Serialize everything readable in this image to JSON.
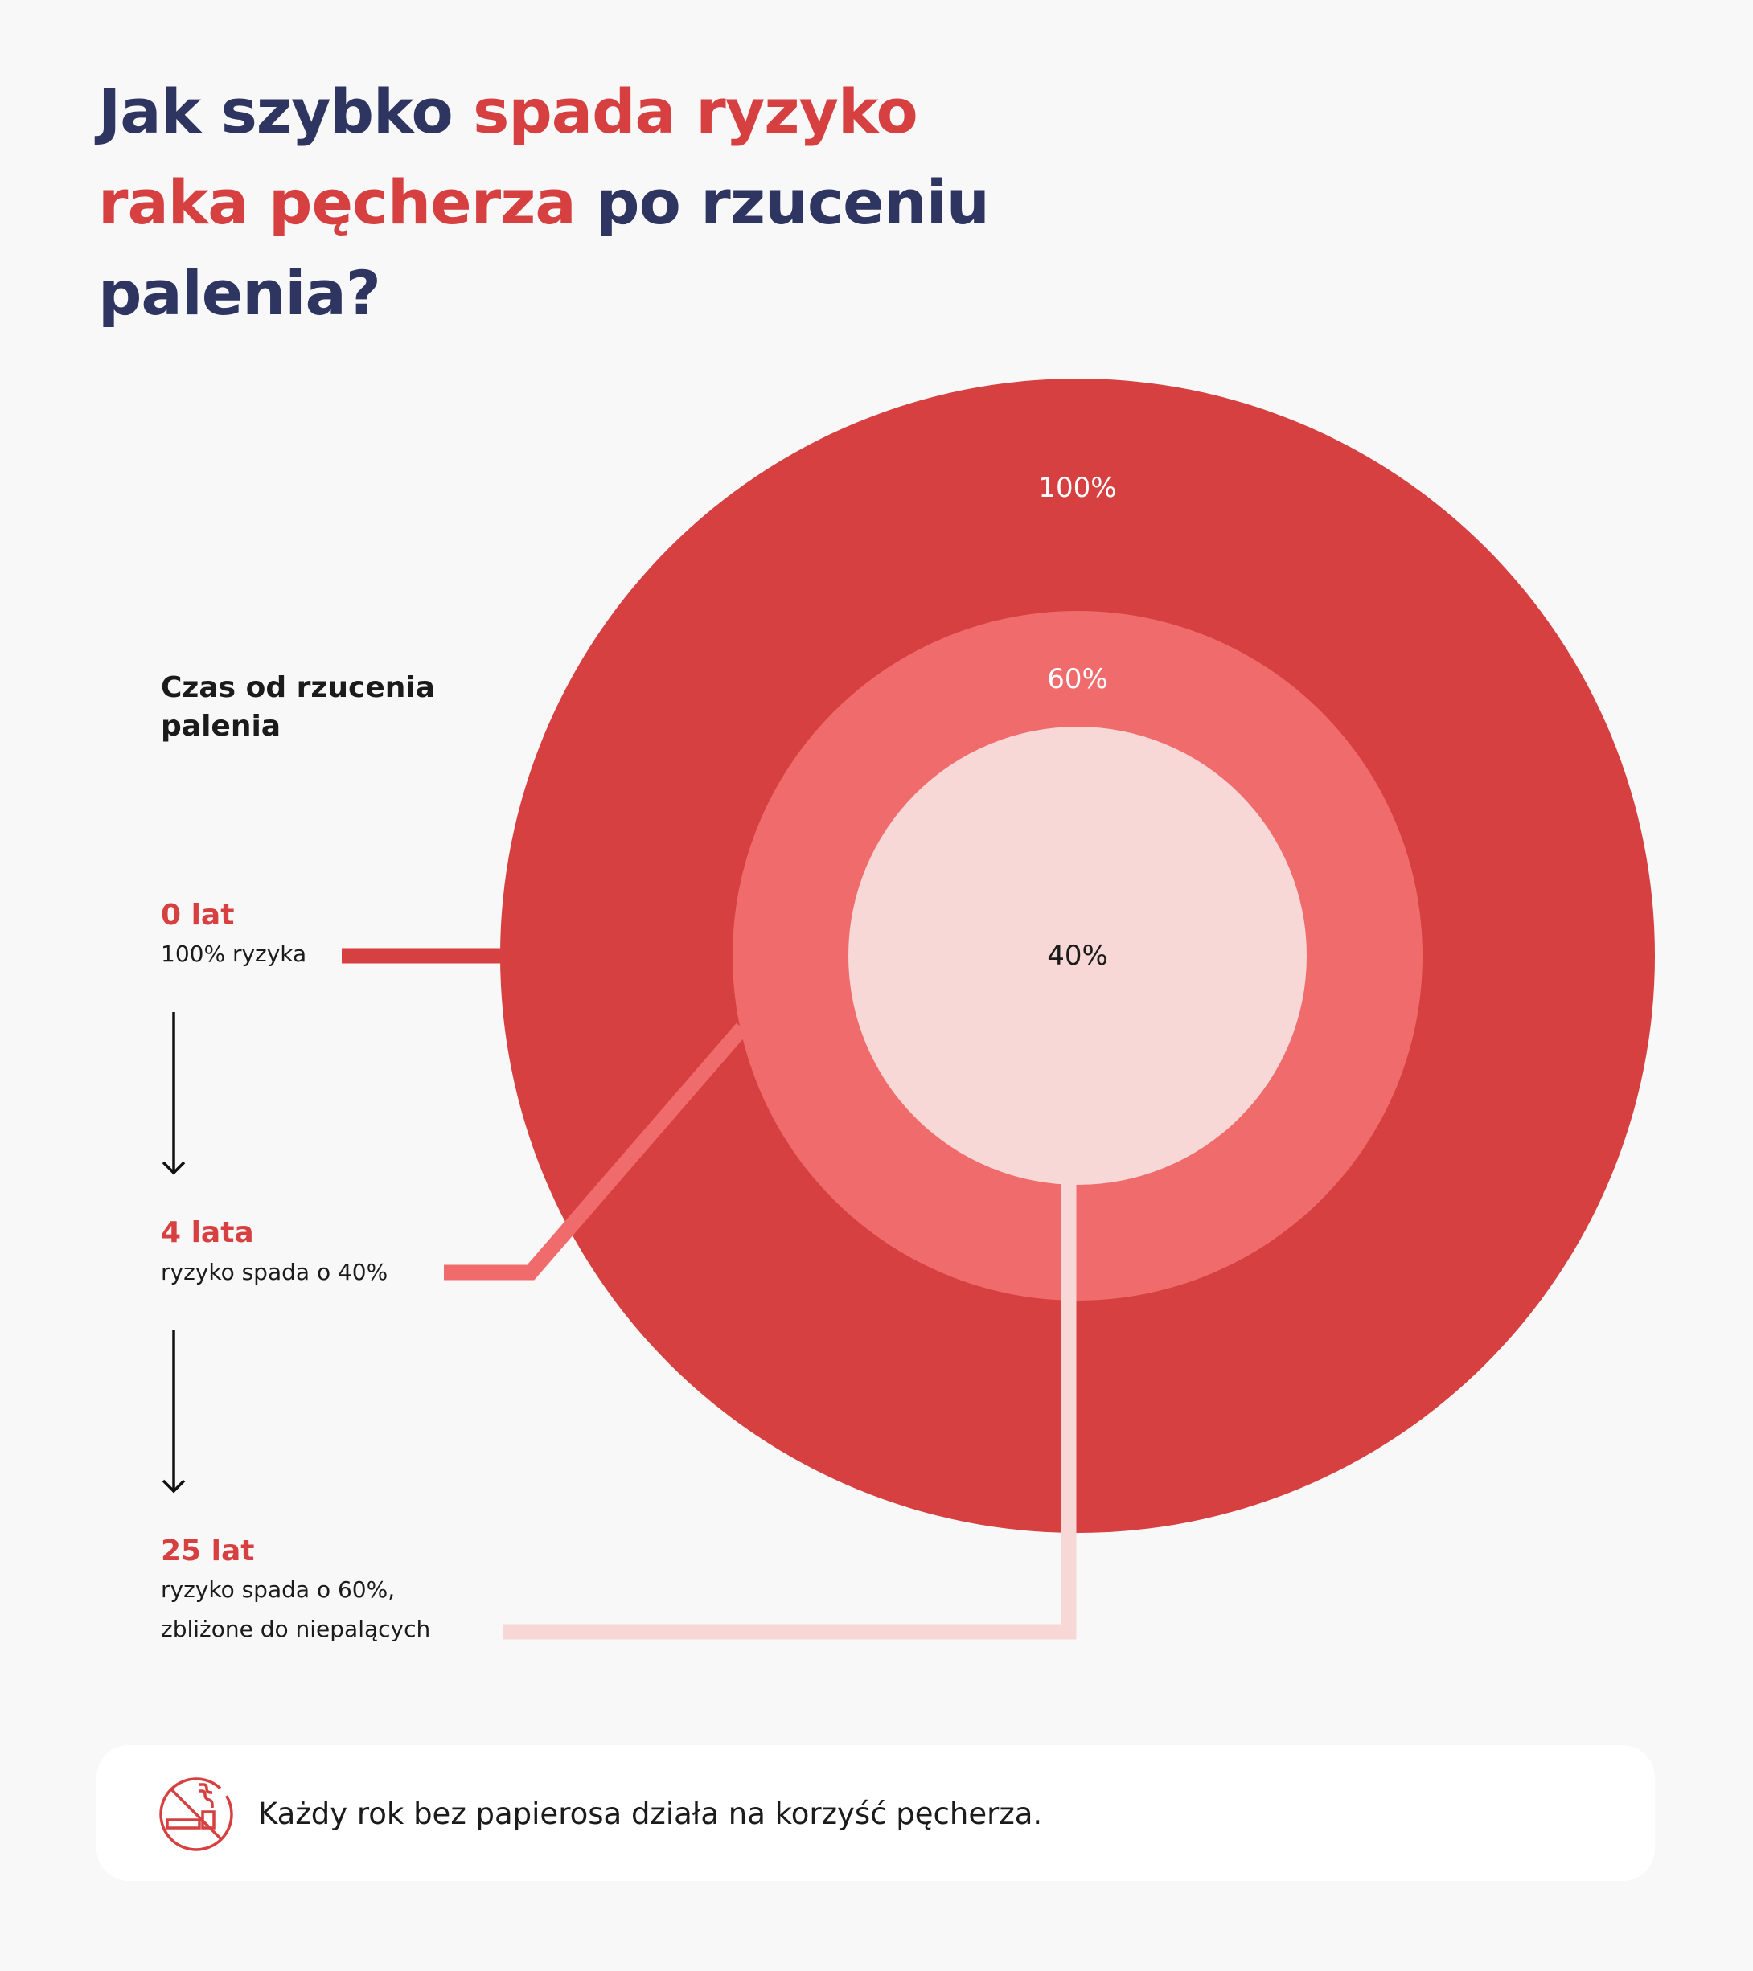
{
  "title": {
    "part1": "Jak szybko ",
    "part2": "spada ryzyko",
    "part3": "raka pęcherza",
    "part4": " po rzuceniu",
    "part5": "palenia?"
  },
  "timeline": {
    "heading_line1": "Czas od rzucenia",
    "heading_line2": "palenia",
    "steps": [
      {
        "title": "0 lat",
        "desc": [
          "100% ryzyka"
        ]
      },
      {
        "title": "4 lata",
        "desc": [
          "ryzyko spada o 40%"
        ]
      },
      {
        "title": "25 lat",
        "desc": [
          "ryzyko spada o 60%,",
          "zbliżone do niepalących"
        ]
      }
    ]
  },
  "circles": {
    "outer_label": "100%",
    "middle_label": "60%",
    "inner_label": "40%",
    "values": [
      100,
      60,
      40
    ]
  },
  "colors": {
    "navy": "#2E3560",
    "red": "#D64040",
    "mid": "#F06C6C",
    "light": "#F8D7D7",
    "background": "#F8F8F8"
  },
  "footer": {
    "icon": "no-smoking-icon",
    "text": "Każdy rok bez papierosa działa na korzyść pęcherza."
  }
}
